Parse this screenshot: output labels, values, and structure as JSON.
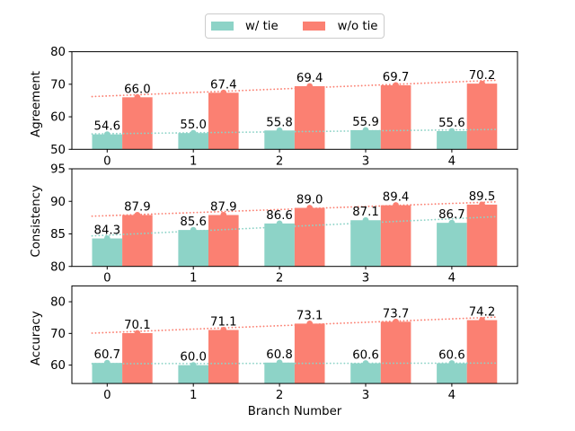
{
  "legend": {
    "position": "top-center",
    "items": [
      {
        "label": "w/ tie",
        "color": "#8dd3c7"
      },
      {
        "label": "w/o tie",
        "color": "#fb8072"
      }
    ]
  },
  "colors": {
    "with_tie": "#8dd3c7",
    "without_tie": "#fb8072",
    "axis": "#000000",
    "legend_border": "#cccccc",
    "background": "#ffffff"
  },
  "chart_data": [
    {
      "type": "bar",
      "title": "",
      "ylabel": "Agreement",
      "xlabel": "",
      "categories": [
        0,
        1,
        2,
        3,
        4
      ],
      "series": [
        {
          "name": "w/ tie",
          "color": "#8dd3c7",
          "values": [
            54.6,
            55.0,
            55.8,
            55.9,
            55.6
          ]
        },
        {
          "name": "w/o tie",
          "color": "#fb8072",
          "values": [
            66.0,
            67.4,
            69.4,
            69.7,
            70.2
          ]
        }
      ],
      "ylim": [
        50,
        80
      ],
      "yticks": [
        50,
        60,
        70,
        80
      ],
      "grid": false,
      "bar_value_labels": true,
      "label_decimals": 1,
      "trendline": "dotted-linear-fit-per-series"
    },
    {
      "type": "bar",
      "title": "",
      "ylabel": "Consistency",
      "xlabel": "",
      "categories": [
        0,
        1,
        2,
        3,
        4
      ],
      "series": [
        {
          "name": "w/ tie",
          "color": "#8dd3c7",
          "values": [
            84.3,
            85.6,
            86.6,
            87.1,
            86.7
          ]
        },
        {
          "name": "w/o tie",
          "color": "#fb8072",
          "values": [
            87.9,
            87.9,
            89.0,
            89.4,
            89.5
          ]
        }
      ],
      "ylim": [
        80,
        95
      ],
      "yticks": [
        80,
        85,
        90,
        95
      ],
      "grid": false,
      "bar_value_labels": true,
      "label_decimals": 1,
      "trendline": "dotted-linear-fit-per-series"
    },
    {
      "type": "bar",
      "title": "",
      "ylabel": "Accuracy",
      "xlabel": "Branch Number",
      "categories": [
        0,
        1,
        2,
        3,
        4
      ],
      "series": [
        {
          "name": "w/ tie",
          "color": "#8dd3c7",
          "values": [
            60.7,
            60.0,
            60.8,
            60.6,
            60.6
          ]
        },
        {
          "name": "w/o tie",
          "color": "#fb8072",
          "values": [
            70.1,
            71.1,
            73.1,
            73.7,
            74.2
          ]
        }
      ],
      "ylim": [
        54.2,
        85.0
      ],
      "yticks": [
        60,
        70,
        80
      ],
      "grid": false,
      "bar_value_labels": true,
      "label_decimals": 1,
      "trendline": "dotted-linear-fit-per-series"
    }
  ]
}
